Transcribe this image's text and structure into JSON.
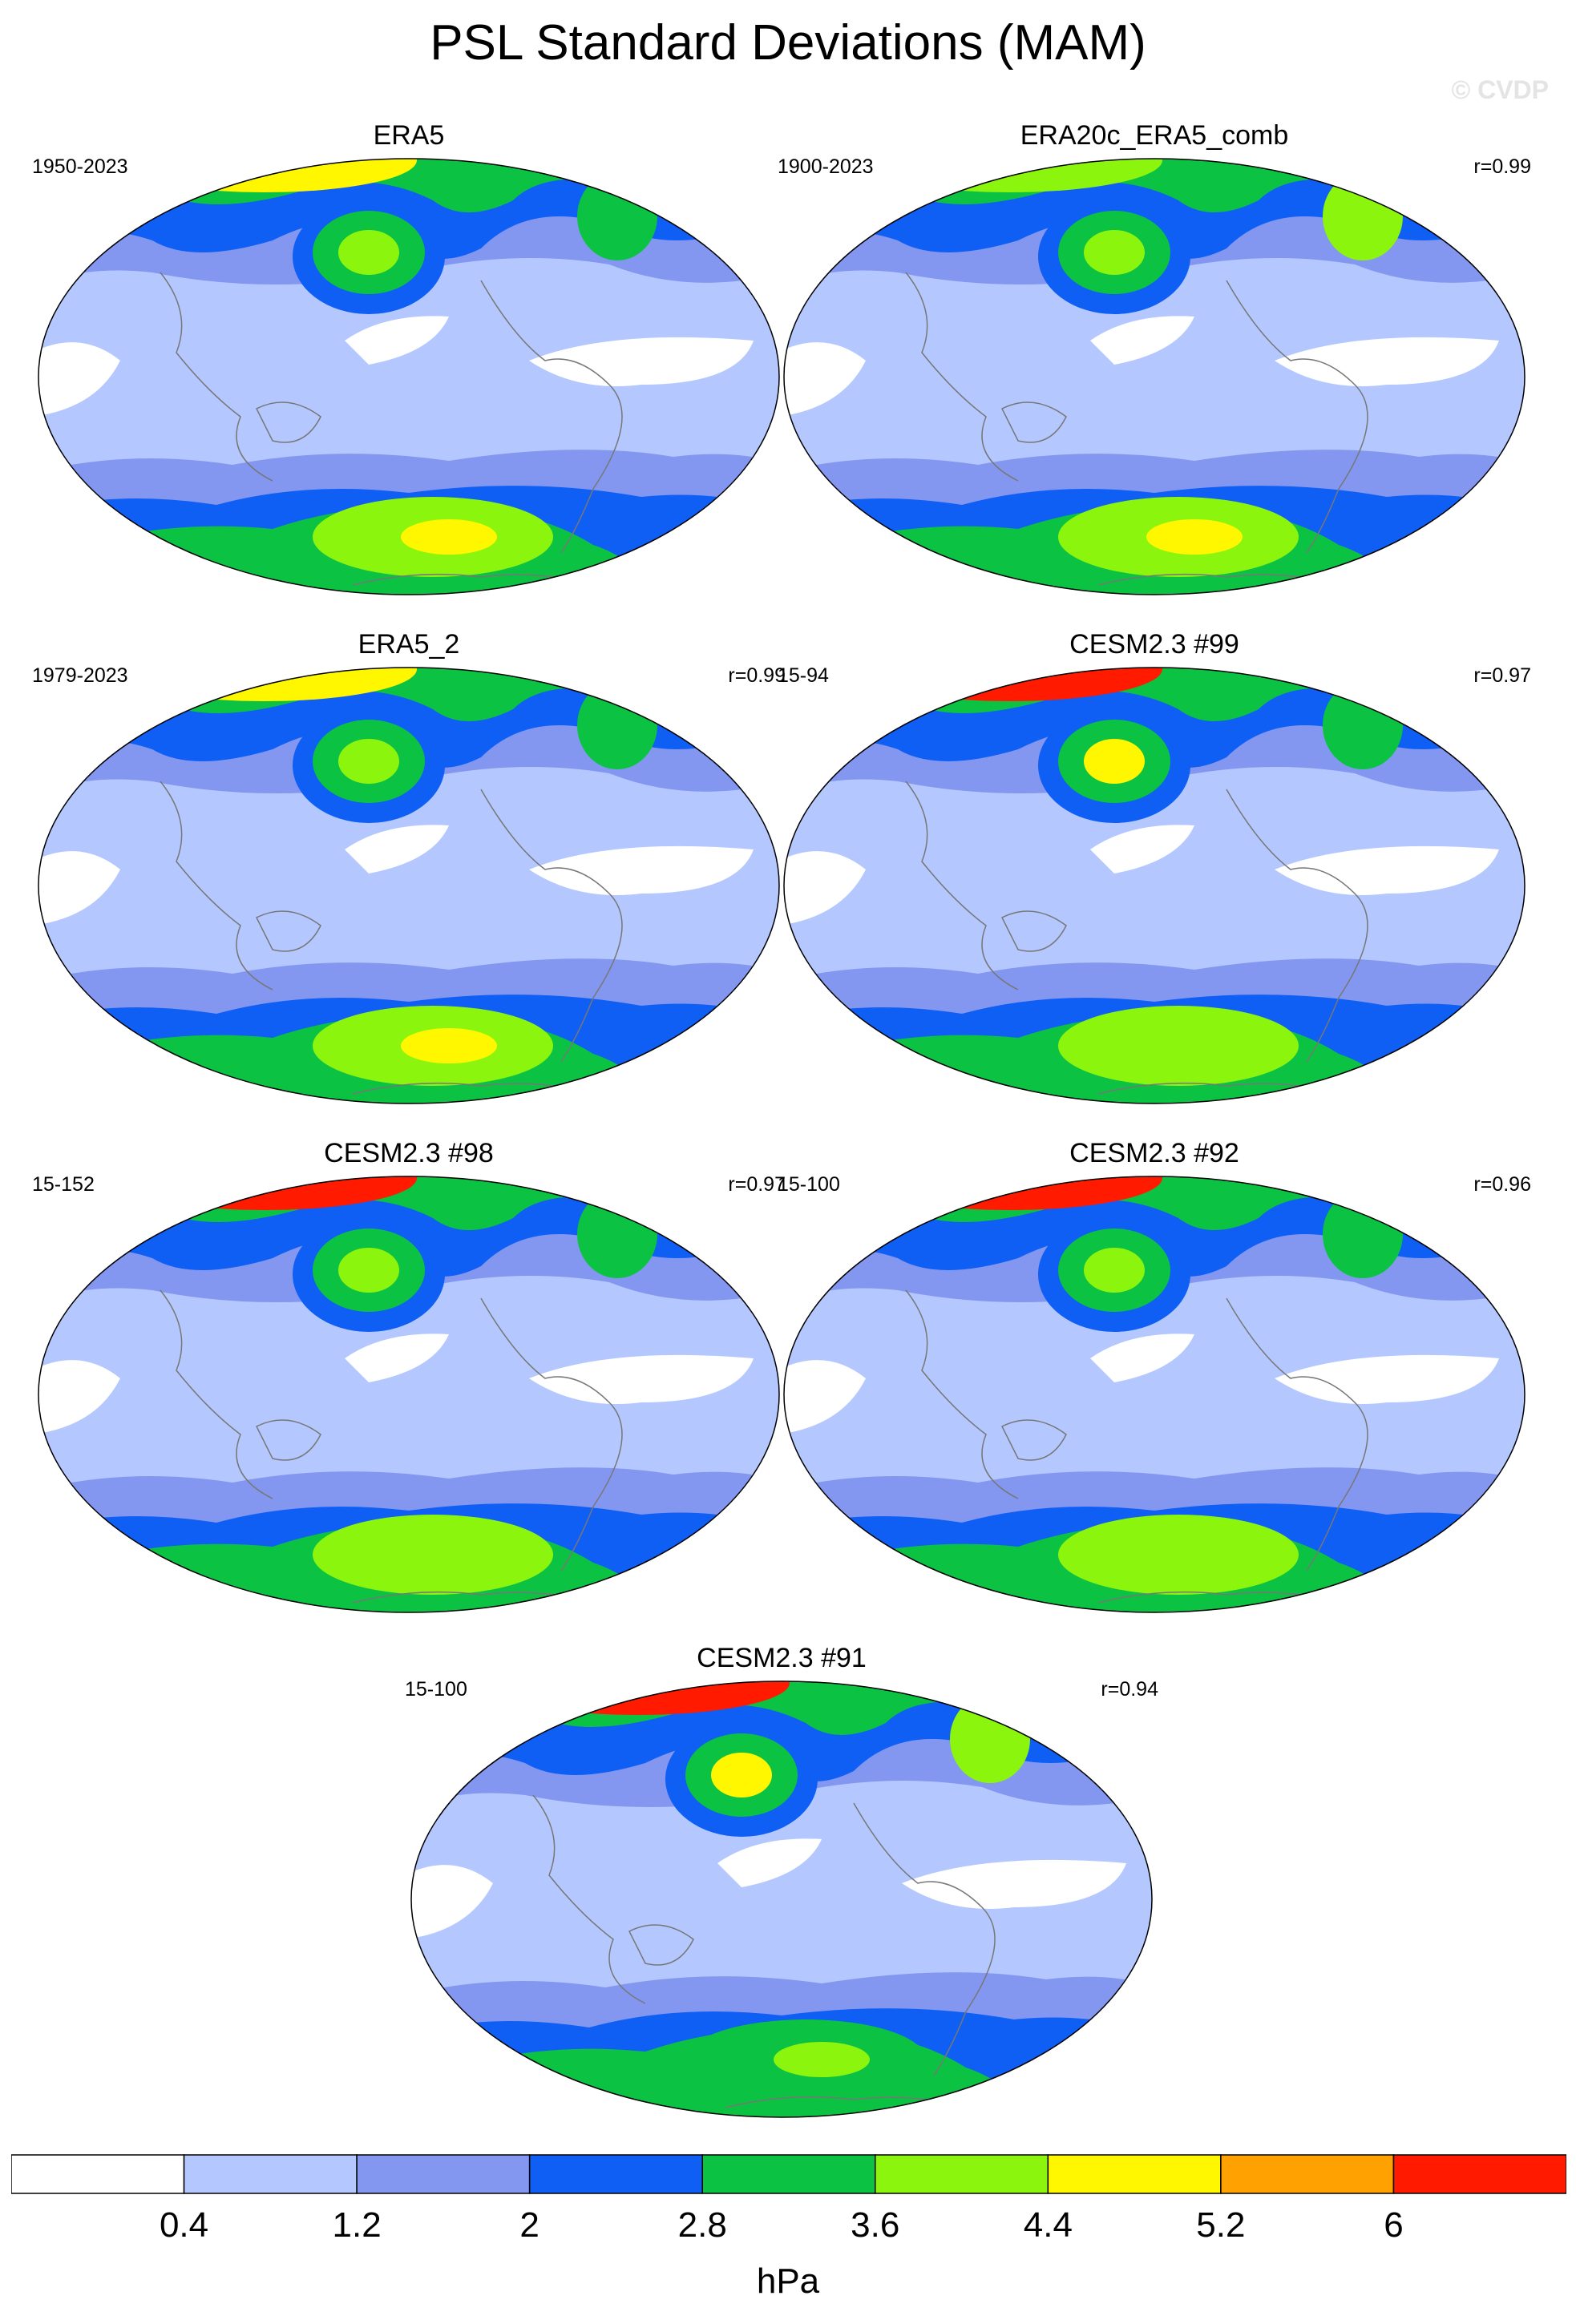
{
  "title": "PSL Standard Deviations (MAM)",
  "watermark": "© CVDP",
  "units": "hPa",
  "colorbar": {
    "colors": [
      "#ffffff",
      "#b4c8ff",
      "#8497f0",
      "#0f5ff5",
      "#0cc242",
      "#8cf50e",
      "#fff700",
      "#ffa100",
      "#ff1a00"
    ],
    "labels": [
      "0.4",
      "1.2",
      "2",
      "2.8",
      "3.6",
      "4.4",
      "5.2",
      "6"
    ]
  },
  "panels": [
    {
      "title": "ERA5",
      "period": "1950-2023",
      "corr": "",
      "arctic": "#fff700",
      "npac": "#8cf50e",
      "natl": "#0cc242",
      "soc": "#8cf50e",
      "socCore": "#fff700"
    },
    {
      "title": "ERA20c_ERA5_comb",
      "period": "1900-2023",
      "corr": "r=0.99",
      "arctic": "#8cf50e",
      "npac": "#8cf50e",
      "natl": "#8cf50e",
      "soc": "#8cf50e",
      "socCore": "#fff700"
    },
    {
      "title": "ERA5_2",
      "period": "1979-2023",
      "corr": "r=0.99",
      "arctic": "#fff700",
      "npac": "#8cf50e",
      "natl": "#0cc242",
      "soc": "#8cf50e",
      "socCore": "#fff700"
    },
    {
      "title": "CESM2.3 #99",
      "period": "15-94",
      "corr": "r=0.97",
      "arctic": "#ff1a00",
      "npac": "#fff700",
      "natl": "#0cc242",
      "soc": "#8cf50e",
      "socCore": "#8cf50e"
    },
    {
      "title": "CESM2.3 #98",
      "period": "15-152",
      "corr": "r=0.97",
      "arctic": "#ff1a00",
      "npac": "#8cf50e",
      "natl": "#0cc242",
      "soc": "#8cf50e",
      "socCore": "#8cf50e"
    },
    {
      "title": "CESM2.3 #92",
      "period": "15-100",
      "corr": "r=0.96",
      "arctic": "#ff1a00",
      "npac": "#8cf50e",
      "natl": "#0cc242",
      "soc": "#8cf50e",
      "socCore": "#8cf50e"
    },
    {
      "title": "CESM2.3 #91",
      "period": "15-100",
      "corr": "r=0.94",
      "arctic": "#ff1a00",
      "npac": "#fff700",
      "natl": "#8cf50e",
      "soc": "#0cc242",
      "socCore": "#8cf50e"
    }
  ]
}
